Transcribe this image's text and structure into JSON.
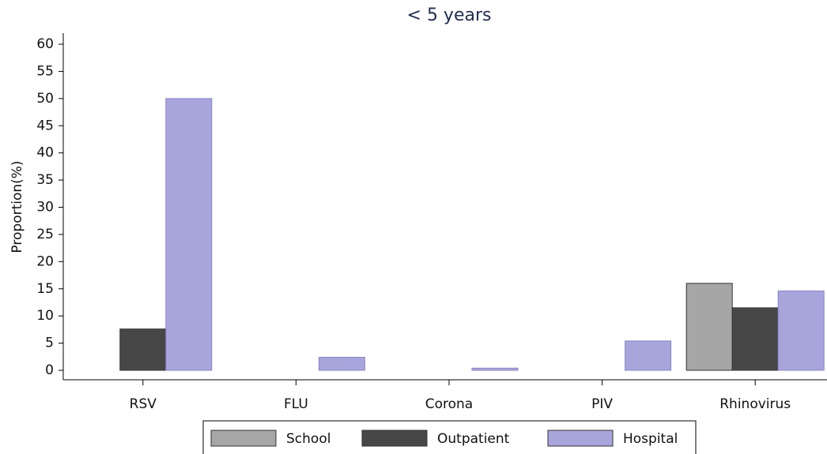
{
  "chart_data": {
    "type": "bar",
    "title": "< 5 years",
    "y_label": "Proportion(%)",
    "categories": [
      "RSV",
      "FLU",
      "Corona",
      "PIV",
      "Rhinovirus"
    ],
    "series": [
      {
        "name": "School",
        "color": "#a6a6a6",
        "values": [
          0,
          0,
          0,
          0,
          16
        ]
      },
      {
        "name": "Outpatient",
        "color": "#474747",
        "values": [
          7.6,
          0,
          0,
          0,
          11.5
        ]
      },
      {
        "name": "Hospital",
        "color": "#a8a4dc",
        "values": [
          50,
          2.4,
          0.4,
          5.4,
          14.6
        ]
      }
    ],
    "ylim": [
      0,
      60
    ],
    "yticks": [
      0,
      5,
      10,
      15,
      20,
      25,
      30,
      35,
      40,
      45,
      50,
      55,
      60
    ],
    "grid": false,
    "legend": "bottom"
  }
}
